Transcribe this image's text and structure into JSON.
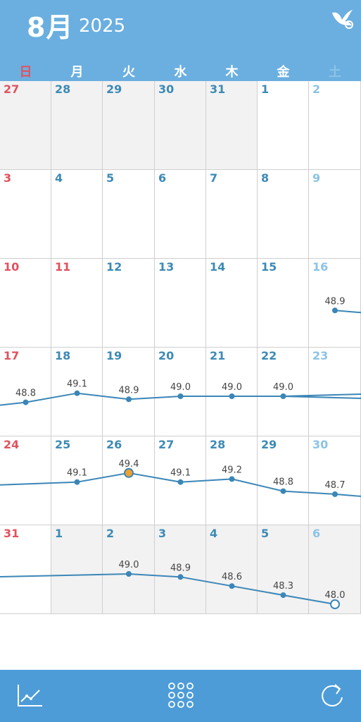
{
  "header": {
    "month": "8月",
    "year": "2025",
    "logo_icon": "bird-logo-icon"
  },
  "weekdays": [
    "日",
    "月",
    "火",
    "水",
    "木",
    "金",
    "土"
  ],
  "colors": {
    "header": "#6aafe0",
    "footer": "#4d9cd8",
    "sunday": "#e0525f",
    "saturday": "#8cc3e6",
    "weekday": "#3d8ab5",
    "line": "#3b86b7",
    "highlight": "#f0a030"
  },
  "calendar": {
    "weeks": [
      [
        {
          "d": "27",
          "other": true
        },
        {
          "d": "28",
          "other": true
        },
        {
          "d": "29",
          "other": true
        },
        {
          "d": "30",
          "other": true
        },
        {
          "d": "31",
          "other": true
        },
        {
          "d": "1"
        },
        {
          "d": "2"
        }
      ],
      [
        {
          "d": "3"
        },
        {
          "d": "4"
        },
        {
          "d": "5"
        },
        {
          "d": "6"
        },
        {
          "d": "7"
        },
        {
          "d": "8"
        },
        {
          "d": "9"
        }
      ],
      [
        {
          "d": "10"
        },
        {
          "d": "11",
          "holiday": true
        },
        {
          "d": "12"
        },
        {
          "d": "13"
        },
        {
          "d": "14"
        },
        {
          "d": "15"
        },
        {
          "d": "16"
        }
      ],
      [
        {
          "d": "17"
        },
        {
          "d": "18"
        },
        {
          "d": "19"
        },
        {
          "d": "20"
        },
        {
          "d": "21"
        },
        {
          "d": "22"
        },
        {
          "d": "23"
        }
      ],
      [
        {
          "d": "24"
        },
        {
          "d": "25"
        },
        {
          "d": "26"
        },
        {
          "d": "27"
        },
        {
          "d": "28"
        },
        {
          "d": "29"
        },
        {
          "d": "30"
        }
      ],
      [
        {
          "d": "31"
        },
        {
          "d": "1",
          "other": true
        },
        {
          "d": "2",
          "other": true
        },
        {
          "d": "3",
          "other": true
        },
        {
          "d": "4",
          "other": true
        },
        {
          "d": "5",
          "other": true
        },
        {
          "d": "6",
          "other": true
        }
      ]
    ]
  },
  "chart_data": {
    "type": "line",
    "points": [
      {
        "week": 2,
        "col": 6,
        "value": 48.9,
        "label": "48.9"
      },
      {
        "week": 3,
        "col": 0,
        "value": 48.8,
        "label": "48.8"
      },
      {
        "week": 3,
        "col": 1,
        "value": 49.1,
        "label": "49.1"
      },
      {
        "week": 3,
        "col": 2,
        "value": 48.9,
        "label": "48.9"
      },
      {
        "week": 3,
        "col": 3,
        "value": 49.0,
        "label": "49.0"
      },
      {
        "week": 3,
        "col": 4,
        "value": 49.0,
        "label": "49.0"
      },
      {
        "week": 3,
        "col": 5,
        "value": 49.0,
        "label": "49.0"
      },
      {
        "week": 4,
        "col": 1,
        "value": 49.1,
        "label": "49.1"
      },
      {
        "week": 4,
        "col": 2,
        "value": 49.4,
        "label": "49.4",
        "highlight": true
      },
      {
        "week": 4,
        "col": 3,
        "value": 49.1,
        "label": "49.1"
      },
      {
        "week": 4,
        "col": 4,
        "value": 49.2,
        "label": "49.2"
      },
      {
        "week": 4,
        "col": 5,
        "value": 48.8,
        "label": "48.8"
      },
      {
        "week": 4,
        "col": 6,
        "value": 48.7,
        "label": "48.7"
      },
      {
        "week": 5,
        "col": 2,
        "value": 49.0,
        "label": "49.0"
      },
      {
        "week": 5,
        "col": 3,
        "value": 48.9,
        "label": "48.9"
      },
      {
        "week": 5,
        "col": 4,
        "value": 48.6,
        "label": "48.6"
      },
      {
        "week": 5,
        "col": 5,
        "value": 48.3,
        "label": "48.3"
      },
      {
        "week": 5,
        "col": 6,
        "value": 48.0,
        "label": "48.0",
        "open": true
      }
    ]
  },
  "footer": {
    "left_icon": "graph-icon",
    "center_icon": "grid-menu-icon",
    "right_icon": "refresh-icon"
  }
}
